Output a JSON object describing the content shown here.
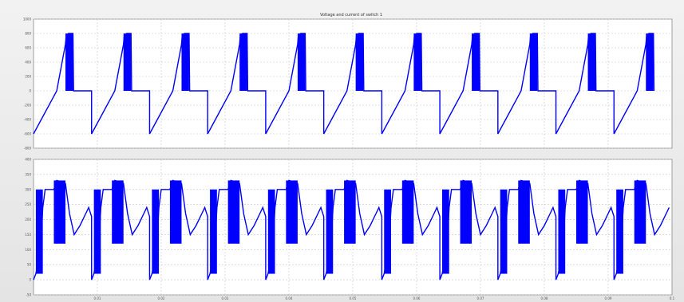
{
  "window": {
    "title": "Voltage and current of switch 1"
  },
  "colors": {
    "trace": "#0000ff",
    "panel_bg": "#ffffff",
    "grid": "#c8c8c8",
    "frame": "#8a8a8a"
  },
  "chart_data": [
    {
      "type": "line",
      "title": "Voltage and current of switch 1",
      "xlabel": "",
      "ylabel": "",
      "grid": true,
      "ylim": [
        -800,
        1000
      ],
      "yticks": [
        {
          "value": 1000,
          "label": "1000"
        },
        {
          "value": 800,
          "label": "800"
        },
        {
          "value": 600,
          "label": "600"
        },
        {
          "value": 400,
          "label": "400"
        },
        {
          "value": 200,
          "label": "200"
        },
        {
          "value": 0,
          "label": "0"
        },
        {
          "value": -200,
          "label": "-200"
        },
        {
          "value": -400,
          "label": "-400"
        },
        {
          "value": -600,
          "label": "-600"
        },
        {
          "value": -800,
          "label": "-800"
        }
      ],
      "x": [
        0.0,
        0.002,
        0.004,
        0.0055,
        0.0056,
        0.006,
        0.0068,
        0.0069,
        0.01
      ],
      "series": [
        {
          "periods": 11,
          "values": [
            -600,
            -300,
            0,
            650,
            750,
            800,
            800,
            0,
            0
          ]
        }
      ]
    },
    {
      "type": "line",
      "title": "",
      "xlabel": "",
      "ylabel": "",
      "grid": true,
      "ylim": [
        -50,
        400
      ],
      "yticks": [
        {
          "value": 400,
          "label": "400"
        },
        {
          "value": 350,
          "label": "350"
        },
        {
          "value": 300,
          "label": "300"
        },
        {
          "value": 250,
          "label": "250"
        },
        {
          "value": 200,
          "label": "200"
        },
        {
          "value": 150,
          "label": "150"
        },
        {
          "value": 100,
          "label": "100"
        },
        {
          "value": 50,
          "label": "50"
        },
        {
          "value": 0,
          "label": "0"
        },
        {
          "value": -50,
          "label": "-50"
        }
      ],
      "xticks": [
        {
          "value": 0.01,
          "label": "0.01"
        },
        {
          "value": 0.02,
          "label": "0.02"
        },
        {
          "value": 0.03,
          "label": "0.03"
        },
        {
          "value": 0.04,
          "label": "0.04"
        },
        {
          "value": 0.05,
          "label": "0.05"
        },
        {
          "value": 0.06,
          "label": "0.06"
        },
        {
          "value": 0.07,
          "label": "0.07"
        },
        {
          "value": 0.08,
          "label": "0.08"
        },
        {
          "value": 0.09,
          "label": "0.09"
        },
        {
          "value": 0.1,
          "label": "0.1"
        }
      ],
      "x": [
        0.0,
        0.0004,
        0.0008,
        0.0012,
        0.0016,
        0.002,
        0.0035,
        0.004,
        0.0055,
        0.0062,
        0.007,
        0.008,
        0.009,
        0.0095,
        0.01
      ],
      "series": [
        {
          "periods": 11,
          "values": [
            0,
            20,
            60,
            100,
            240,
            300,
            300,
            330,
            320,
            220,
            150,
            180,
            220,
            240,
            210
          ]
        }
      ]
    }
  ]
}
